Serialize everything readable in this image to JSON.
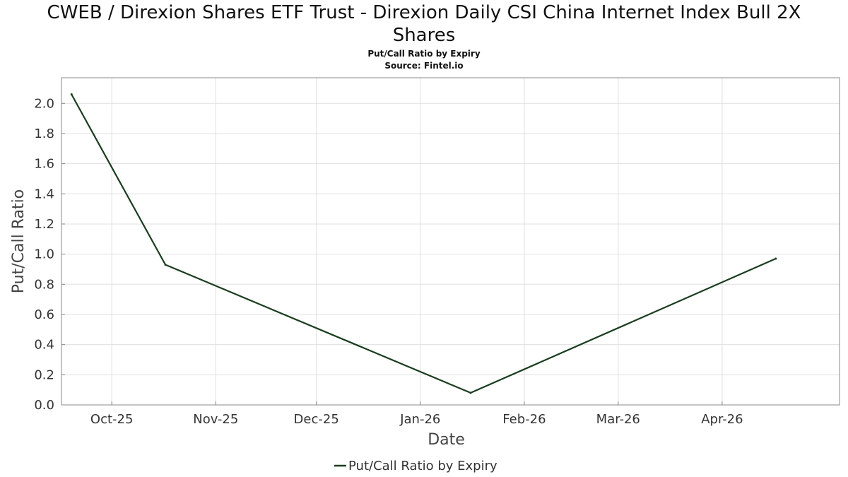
{
  "header": {
    "title_line1": "CWEB / Direxion Shares ETF Trust - Direxion Daily CSI China Internet Index Bull 2X",
    "title_line2": "Shares",
    "subtitle": "Put/Call Ratio by Expiry",
    "source": "Source: Fintel.io"
  },
  "colors": {
    "series": "#1a3d1f",
    "grid": "#e0e0e0",
    "axis": "#888888"
  },
  "chart_data": {
    "type": "line",
    "title": "CWEB / Direxion Shares ETF Trust - Direxion Daily CSI China Internet Index Bull 2X Shares",
    "subtitle": "Put/Call Ratio by Expiry",
    "xlabel": "Date",
    "ylabel": "Put/Call Ratio",
    "x_axis_type": "date",
    "xlim": [
      "2025-09-16",
      "2026-05-06"
    ],
    "ylim": [
      0,
      2.17
    ],
    "yticks": [
      0.0,
      0.2,
      0.4,
      0.6,
      0.8,
      1.0,
      1.2,
      1.4,
      1.6,
      1.8,
      2.0
    ],
    "ytick_labels": [
      "0.0",
      "0.2",
      "0.4",
      "0.6",
      "0.8",
      "1.0",
      "1.2",
      "1.4",
      "1.6",
      "1.8",
      "2.0"
    ],
    "xticks": [
      {
        "date": "2025-10-01",
        "label": "Oct-25"
      },
      {
        "date": "2025-11-01",
        "label": "Nov-25"
      },
      {
        "date": "2025-12-01",
        "label": "Dec-25"
      },
      {
        "date": "2026-01-01",
        "label": "Jan-26"
      },
      {
        "date": "2026-02-01",
        "label": "Feb-26"
      },
      {
        "date": "2026-03-01",
        "label": "Mar-26"
      },
      {
        "date": "2026-04-01",
        "label": "Apr-26"
      }
    ],
    "grid": true,
    "legend_position": "bottom-center",
    "series": [
      {
        "name": "Put/Call Ratio by Expiry",
        "points": [
          {
            "x": "2025-09-19",
            "y": 2.06
          },
          {
            "x": "2025-10-17",
            "y": 0.93
          },
          {
            "x": "2026-01-16",
            "y": 0.08
          },
          {
            "x": "2026-04-17",
            "y": 0.97
          }
        ]
      }
    ]
  }
}
